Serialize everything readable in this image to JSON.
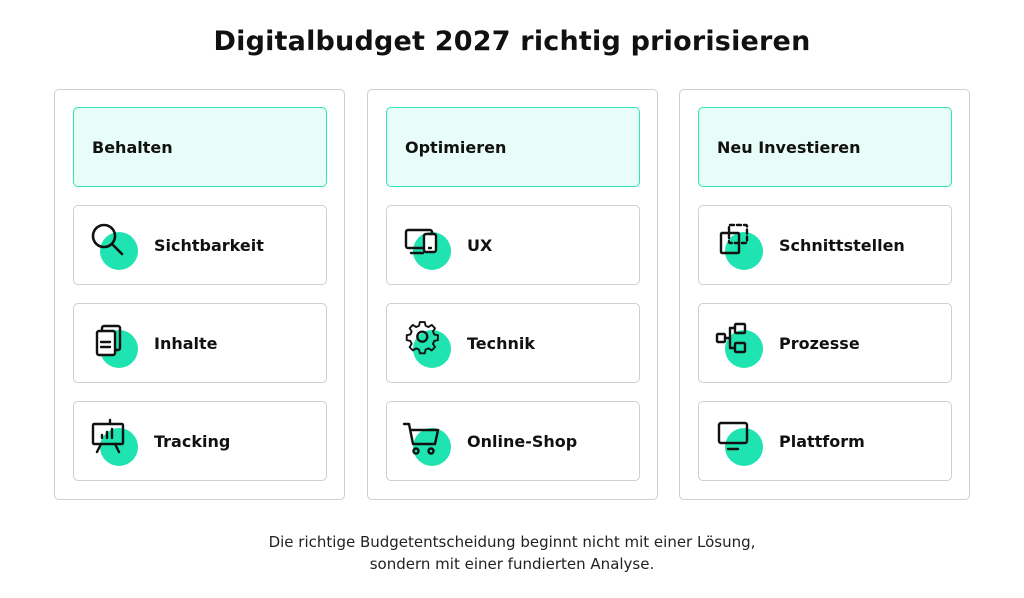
{
  "title": "Digitalbudget 2027 richtig priorisieren",
  "accent_color": "#1fe3b0",
  "header_bg_color": "#e8fcf8",
  "columns": [
    {
      "header": "Behalten",
      "cards": [
        {
          "label": "Sichtbarkeit",
          "icon": "magnifier-icon"
        },
        {
          "label": "Inhalte",
          "icon": "documents-icon"
        },
        {
          "label": "Tracking",
          "icon": "presentation-chart-icon"
        }
      ]
    },
    {
      "header": "Optimieren",
      "cards": [
        {
          "label": "UX",
          "icon": "devices-icon"
        },
        {
          "label": "Technik",
          "icon": "gear-icon"
        },
        {
          "label": "Online-Shop",
          "icon": "shopping-cart-icon"
        }
      ]
    },
    {
      "header": "Neu Investieren",
      "cards": [
        {
          "label": "Schnittstellen",
          "icon": "interface-icon"
        },
        {
          "label": "Prozesse",
          "icon": "process-flow-icon"
        },
        {
          "label": "Plattform",
          "icon": "monitor-icon"
        }
      ]
    }
  ],
  "footer": {
    "line1": "Die richtige Budgetentscheidung beginnt nicht mit einer Lösung,",
    "line2": "sondern mit einer fundierten Analyse."
  }
}
